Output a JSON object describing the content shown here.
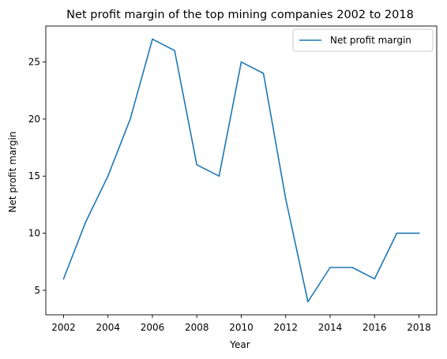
{
  "chart_data": {
    "type": "line",
    "title": "Net profit margin of the top mining companies 2002 to 2018",
    "xlabel": "Year",
    "ylabel": "Net profit margin",
    "x": [
      2002,
      2003,
      2004,
      2005,
      2006,
      2007,
      2008,
      2009,
      2010,
      2011,
      2012,
      2013,
      2014,
      2015,
      2016,
      2017,
      2018
    ],
    "series": [
      {
        "name": "Net profit margin",
        "values": [
          6,
          11,
          15,
          20,
          27,
          26,
          16,
          15,
          25,
          24,
          13,
          4,
          7,
          7,
          6,
          10,
          10
        ],
        "color": "#1f77b4"
      }
    ],
    "xlim": [
      2001.2,
      2018.8
    ],
    "ylim": [
      2.85,
      28.15
    ],
    "xticks": [
      2002,
      2004,
      2006,
      2008,
      2010,
      2012,
      2014,
      2016,
      2018
    ],
    "yticks": [
      5,
      10,
      15,
      20,
      25
    ],
    "grid": false,
    "legend_position": "top-right"
  }
}
